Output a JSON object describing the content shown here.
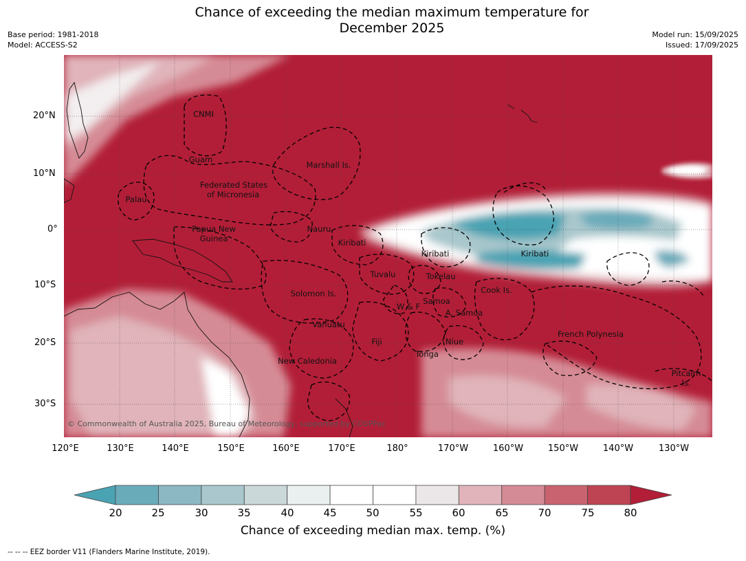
{
  "header": {
    "title_line1": "Chance of exceeding the median maximum temperature for",
    "title_line2": "December 2025",
    "base_period": "Base period: 1981-2018",
    "model": "Model: ACCESS-S2",
    "model_run": "Model run: 15/09/2025",
    "issued": "Issued: 17/09/2025"
  },
  "map": {
    "lat_labels": [
      "20°N",
      "10°N",
      "0°",
      "10°S",
      "20°S",
      "30°S"
    ],
    "lon_labels": [
      "120°E",
      "130°E",
      "140°E",
      "150°E",
      "160°E",
      "170°E",
      "180°",
      "170°W",
      "160°W",
      "150°W",
      "140°W",
      "130°W"
    ],
    "place_labels": [
      "CNMI",
      "Guam",
      "Marshall Is.",
      "Federated States",
      "of Micronesia",
      "Palau",
      "Papua New",
      "Guinea",
      "Nauru",
      "Kiribati",
      "Kiribati",
      "Kiribati",
      "Tuvalu",
      "Tokelau",
      "Solomon Is.",
      "Samoa",
      "W & F",
      "A. Samoa",
      "Cook Is.",
      "Vanuatu",
      "Fiji",
      "Niue",
      "Tonga",
      "New Caledonia",
      "French Polynesia",
      "Pitcairn",
      "Is."
    ],
    "copyright": "© Commonwealth of Australia 2025, Bureau of Meteorology, supported by COSPPac",
    "colors": {
      "ocean_high": "#b21e37",
      "land_mask": "#d98b95",
      "cool": "#4aa3b3",
      "neutral": "#ffffff",
      "grid": "#555555"
    }
  },
  "colorbar": {
    "ticks": [
      "20",
      "25",
      "30",
      "35",
      "40",
      "45",
      "50",
      "55",
      "60",
      "65",
      "70",
      "75",
      "80"
    ],
    "colors": [
      "#4aa3b3",
      "#6aabba",
      "#8bb8c3",
      "#a9c7cc",
      "#cad8da",
      "#eaf0f0",
      "#ffffff",
      "#ffffff",
      "#ebe6e7",
      "#e0b4ba",
      "#d58b95",
      "#c9636f",
      "#be4353",
      "#b21e37"
    ],
    "label": "Chance of exceeding median max. temp. (%)"
  },
  "footer": "--  --  -- EEZ border V11 (Flanders Marine Institute, 2019)."
}
